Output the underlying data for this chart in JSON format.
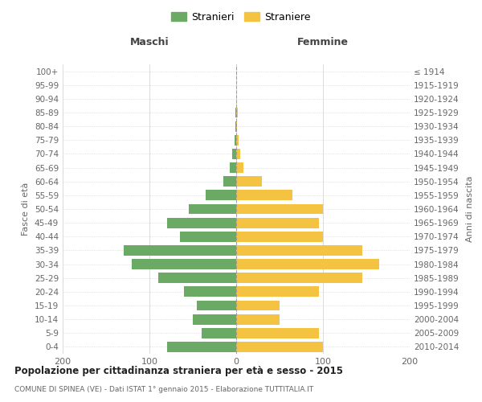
{
  "age_groups": [
    "0-4",
    "5-9",
    "10-14",
    "15-19",
    "20-24",
    "25-29",
    "30-34",
    "35-39",
    "40-44",
    "45-49",
    "50-54",
    "55-59",
    "60-64",
    "65-69",
    "70-74",
    "75-79",
    "80-84",
    "85-89",
    "90-94",
    "95-99",
    "100+"
  ],
  "birth_years": [
    "2010-2014",
    "2005-2009",
    "2000-2004",
    "1995-1999",
    "1990-1994",
    "1985-1989",
    "1980-1984",
    "1975-1979",
    "1970-1974",
    "1965-1969",
    "1960-1964",
    "1955-1959",
    "1950-1954",
    "1945-1949",
    "1940-1944",
    "1935-1939",
    "1930-1934",
    "1925-1929",
    "1920-1924",
    "1915-1919",
    "≤ 1914"
  ],
  "maschi": [
    80,
    40,
    50,
    45,
    60,
    90,
    120,
    130,
    65,
    80,
    55,
    35,
    15,
    7,
    5,
    2,
    1,
    1,
    0,
    0,
    0
  ],
  "femmine": [
    100,
    95,
    50,
    50,
    95,
    145,
    165,
    145,
    100,
    95,
    100,
    65,
    30,
    8,
    5,
    3,
    1,
    2,
    0,
    0,
    0
  ],
  "color_maschi": "#6aaa64",
  "color_femmine": "#f5c342",
  "title": "Popolazione per cittadinanza straniera per età e sesso - 2015",
  "subtitle": "COMUNE DI SPINEA (VE) - Dati ISTAT 1° gennaio 2015 - Elaborazione TUTTITALIA.IT",
  "xlabel_left": "Maschi",
  "xlabel_right": "Femmine",
  "ylabel_left": "Fasce di età",
  "ylabel_right": "Anni di nascita",
  "legend_stranieri": "Stranieri",
  "legend_straniere": "Straniere",
  "xlim": 200,
  "background_color": "#ffffff",
  "grid_color": "#cccccc"
}
